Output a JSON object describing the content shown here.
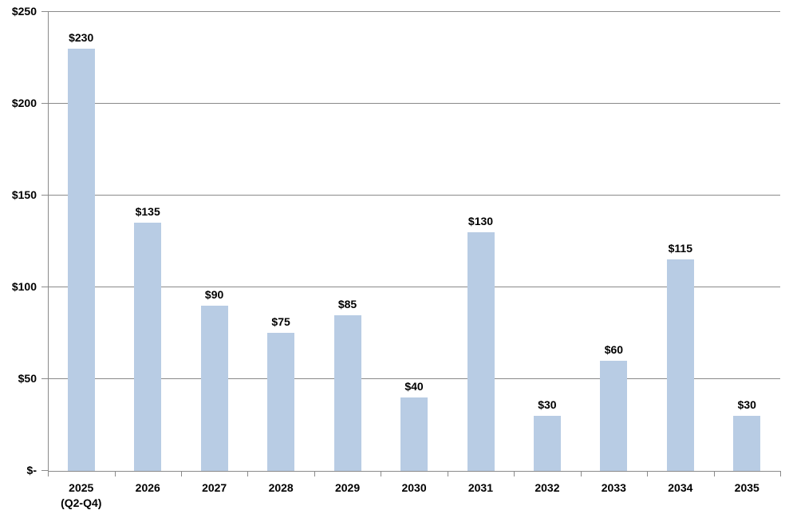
{
  "chart_data": {
    "type": "bar",
    "title": "",
    "xlabel": "",
    "ylabel": "",
    "categories": [
      {
        "label": "2025",
        "sublabel": "(Q2-Q4)"
      },
      {
        "label": "2026"
      },
      {
        "label": "2027"
      },
      {
        "label": "2028"
      },
      {
        "label": "2029"
      },
      {
        "label": "2030"
      },
      {
        "label": "2031"
      },
      {
        "label": "2032"
      },
      {
        "label": "2033"
      },
      {
        "label": "2034"
      },
      {
        "label": "2035"
      }
    ],
    "values": [
      230,
      135,
      90,
      75,
      85,
      40,
      130,
      30,
      60,
      115,
      30
    ],
    "data_labels": [
      "$230",
      "$135",
      "$90",
      "$75",
      "$85",
      "$40",
      "$130",
      "$30",
      "$60",
      "$115",
      "$30"
    ],
    "y_ticks": [
      {
        "value": 0,
        "label": "$-"
      },
      {
        "value": 50,
        "label": "$50"
      },
      {
        "value": 100,
        "label": "$100"
      },
      {
        "value": 150,
        "label": "$150"
      },
      {
        "value": 200,
        "label": "$200"
      },
      {
        "value": 250,
        "label": "$250"
      }
    ],
    "ylim": [
      0,
      250
    ],
    "grid": true,
    "legend": "none",
    "colors": {
      "bar_fill": "#B8CCE4",
      "gridline": "#8A8A8A",
      "axis": "#8A8A8A",
      "label_text": "#000000"
    }
  }
}
